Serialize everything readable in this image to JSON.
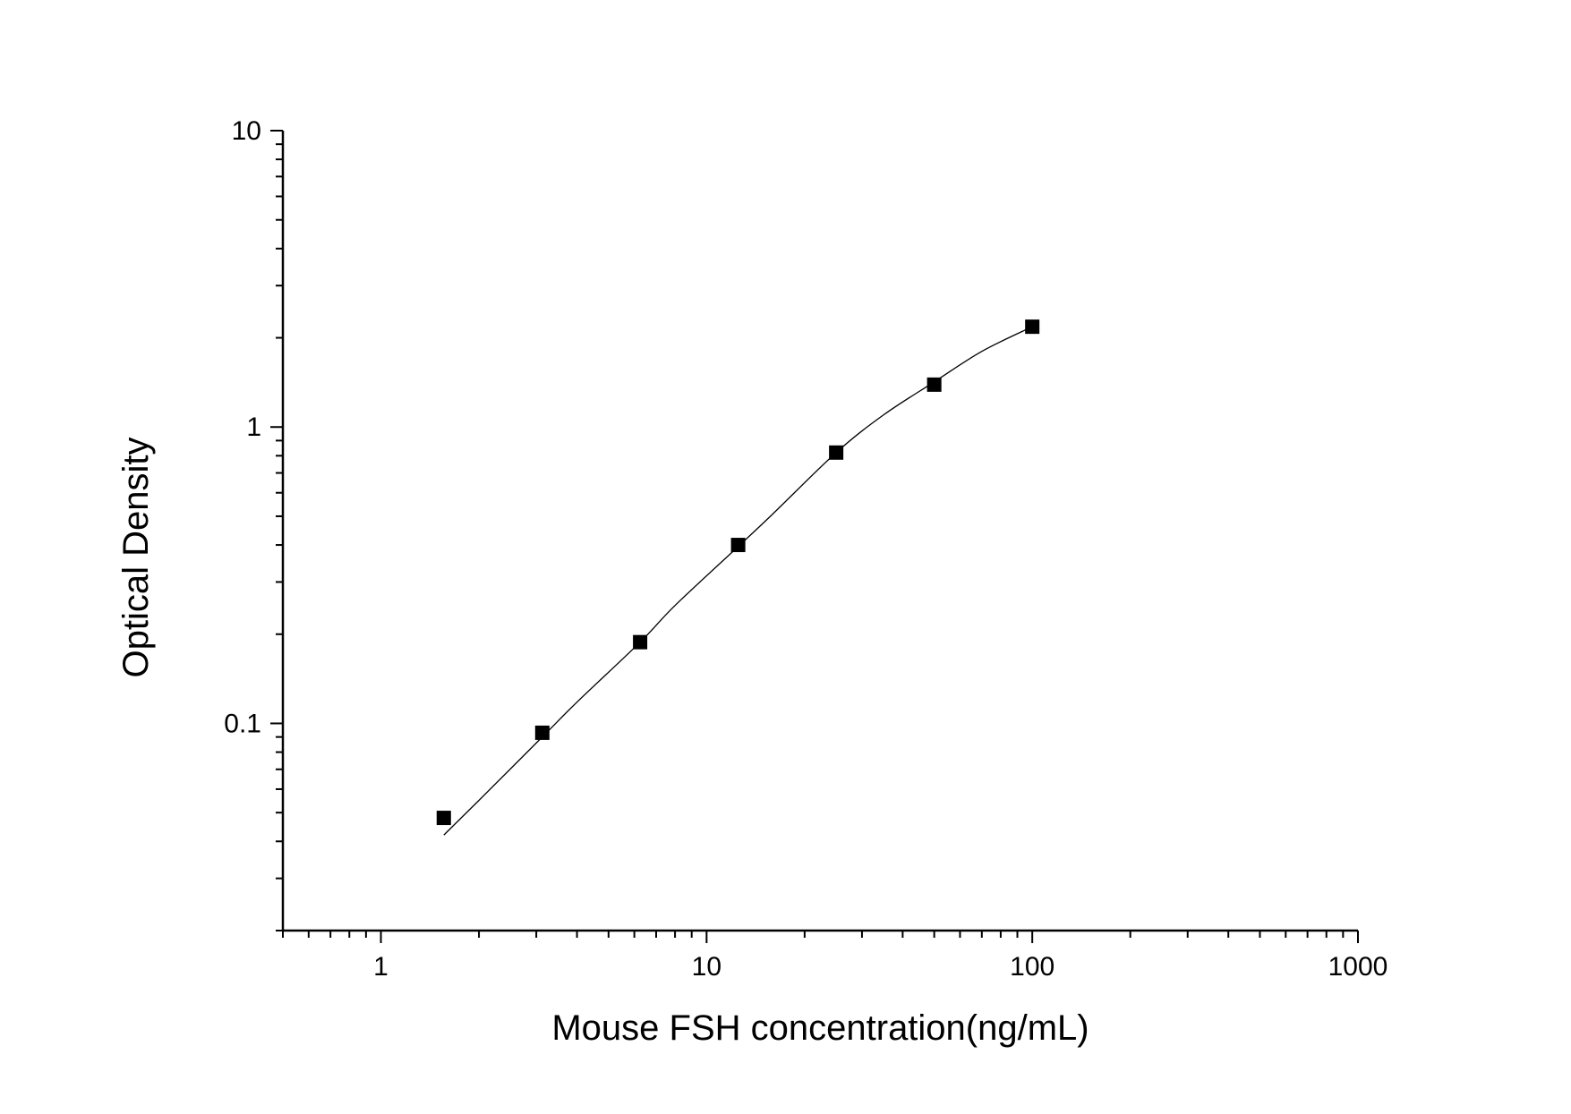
{
  "chart_data": {
    "type": "scatter",
    "title": "",
    "xlabel": "Mouse FSH concentration(ng/mL)",
    "ylabel": "Optical Density",
    "x_scale": "log",
    "y_scale": "log",
    "xlim": [
      0.5,
      1000
    ],
    "ylim": [
      0.02,
      10
    ],
    "x_tick_labels": [
      "1",
      "10",
      "100",
      "1000"
    ],
    "x_tick_values": [
      1,
      10,
      100,
      1000
    ],
    "y_tick_labels": [
      "0.1",
      "1",
      "10"
    ],
    "y_tick_values": [
      0.1,
      1,
      10
    ],
    "grid": false,
    "legend": "none",
    "series": [
      {
        "marker": "square",
        "color": "#000000",
        "x": [
          1.56,
          3.13,
          6.25,
          12.5,
          25,
          50,
          100
        ],
        "y": [
          0.048,
          0.093,
          0.188,
          0.4,
          0.82,
          1.39,
          2.18
        ]
      }
    ],
    "fit_curve": {
      "type": "line",
      "color": "#000000",
      "x": [
        1.56,
        2,
        3.13,
        4,
        6.25,
        8,
        12.5,
        16,
        25,
        35,
        50,
        70,
        100
      ],
      "y": [
        0.042,
        0.055,
        0.09,
        0.118,
        0.188,
        0.25,
        0.395,
        0.51,
        0.82,
        1.1,
        1.42,
        1.8,
        2.18
      ]
    }
  }
}
